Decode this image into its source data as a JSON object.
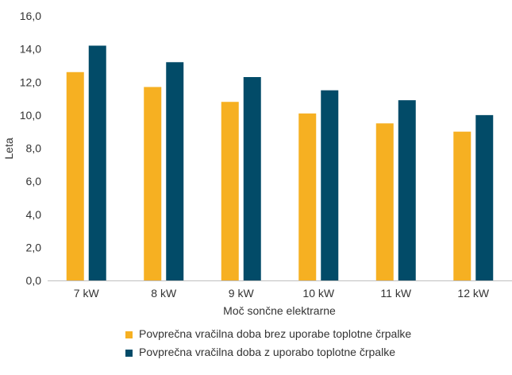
{
  "chart_data": {
    "type": "bar",
    "title": "",
    "xlabel": "Moč sončne elektrarne",
    "ylabel": "Leta",
    "categories": [
      "7 kW",
      "8 kW",
      "9 kW",
      "10 kW",
      "11 kW",
      "12 kW"
    ],
    "ylim": [
      0,
      16
    ],
    "yticks": [
      "0,0",
      "2,0",
      "4,0",
      "6,0",
      "8,0",
      "10,0",
      "12,0",
      "14,0",
      "16,0"
    ],
    "grid": false,
    "legend_position": "bottom",
    "series": [
      {
        "name": "Povprečna vračilna doba brez uporabe toplotne črpalke",
        "color": "#F6B022",
        "values": [
          12.6,
          11.7,
          10.8,
          10.1,
          9.5,
          9.0
        ]
      },
      {
        "name": "Povprečna vračilna doba z uporabo toplotne črpalke",
        "color": "#024B68",
        "values": [
          14.2,
          13.2,
          12.3,
          11.5,
          10.9,
          10.0
        ]
      }
    ]
  }
}
